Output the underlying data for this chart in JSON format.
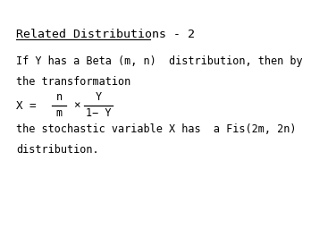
{
  "title": "Related Distributions - 2",
  "line1": "If Y has a Beta (m, n)  distribution, then by",
  "line2": "the transformation",
  "formula_x": "X = ",
  "frac1_num": "n",
  "frac1_den": "m",
  "times": "×",
  "frac2_num": "Y",
  "frac2_den": "1− Y",
  "line3": "the stochastic variable X has  a Fis(2m, 2n)",
  "line4": "distribution.",
  "bg_color": "#ffffff",
  "text_color": "#000000",
  "font_size": 8.5,
  "title_font_size": 9.5
}
